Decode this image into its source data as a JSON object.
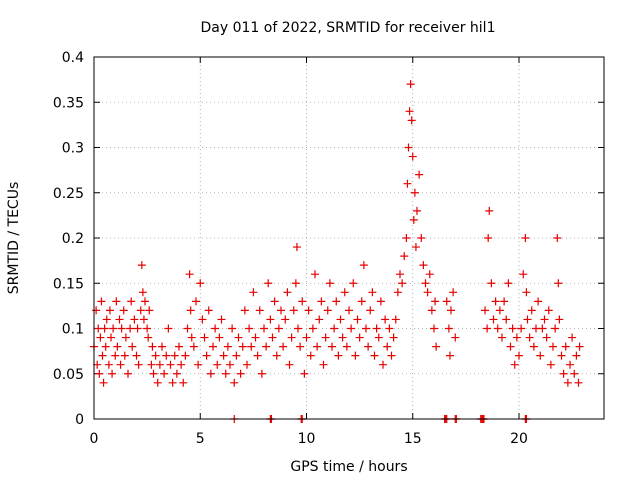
{
  "chart_data": {
    "type": "scatter",
    "title": "Day 011 of 2022, SRMTID for receiver hil1",
    "xlabel": "GPS time / hours",
    "ylabel": "SRMTID / TECUs",
    "xlim": [
      0,
      24
    ],
    "ylim": [
      0,
      0.4
    ],
    "xticks": [
      {
        "value": 0,
        "label": "0"
      },
      {
        "value": 5,
        "label": "5"
      },
      {
        "value": 10,
        "label": "10"
      },
      {
        "value": 15,
        "label": "15"
      },
      {
        "value": 20,
        "label": "20"
      }
    ],
    "yticks": [
      {
        "value": 0,
        "label": "0"
      },
      {
        "value": 0.05,
        "label": "0.05"
      },
      {
        "value": 0.1,
        "label": "0.1"
      },
      {
        "value": 0.15,
        "label": "0.15"
      },
      {
        "value": 0.2,
        "label": "0.2"
      },
      {
        "value": 0.25,
        "label": "0.25"
      },
      {
        "value": 0.3,
        "label": "0.3"
      },
      {
        "value": 0.35,
        "label": "0.35"
      },
      {
        "value": 0.4,
        "label": "0.4"
      }
    ],
    "grid": true,
    "marker": "+",
    "series": [
      {
        "color": "#e60000",
        "points": [
          [
            0.0,
            0.08
          ],
          [
            0.1,
            0.12
          ],
          [
            0.15,
            0.06
          ],
          [
            0.2,
            0.1
          ],
          [
            0.25,
            0.05
          ],
          [
            0.3,
            0.09
          ],
          [
            0.35,
            0.13
          ],
          [
            0.4,
            0.07
          ],
          [
            0.45,
            0.04
          ],
          [
            0.5,
            0.1
          ],
          [
            0.55,
            0.08
          ],
          [
            0.6,
            0.11
          ],
          [
            0.7,
            0.06
          ],
          [
            0.75,
            0.12
          ],
          [
            0.8,
            0.09
          ],
          [
            0.85,
            0.05
          ],
          [
            0.9,
            0.1
          ],
          [
            1.0,
            0.07
          ],
          [
            1.05,
            0.13
          ],
          [
            1.1,
            0.08
          ],
          [
            1.2,
            0.11
          ],
          [
            1.25,
            0.06
          ],
          [
            1.3,
            0.1
          ],
          [
            1.4,
            0.12
          ],
          [
            1.45,
            0.07
          ],
          [
            1.5,
            0.09
          ],
          [
            1.6,
            0.05
          ],
          [
            1.7,
            0.1
          ],
          [
            1.75,
            0.13
          ],
          [
            1.8,
            0.08
          ],
          [
            1.9,
            0.11
          ],
          [
            2.0,
            0.07
          ],
          [
            2.05,
            0.1
          ],
          [
            2.1,
            0.06
          ],
          [
            2.2,
            0.12
          ],
          [
            2.25,
            0.17
          ],
          [
            2.3,
            0.14
          ],
          [
            2.35,
            0.11
          ],
          [
            2.4,
            0.13
          ],
          [
            2.5,
            0.1
          ],
          [
            2.55,
            0.09
          ],
          [
            2.6,
            0.12
          ],
          [
            2.7,
            0.06
          ],
          [
            2.75,
            0.08
          ],
          [
            2.8,
            0.05
          ],
          [
            2.9,
            0.07
          ],
          [
            3.0,
            0.04
          ],
          [
            3.1,
            0.06
          ],
          [
            3.2,
            0.08
          ],
          [
            3.3,
            0.05
          ],
          [
            3.4,
            0.07
          ],
          [
            3.5,
            0.1
          ],
          [
            3.6,
            0.06
          ],
          [
            3.7,
            0.04
          ],
          [
            3.8,
            0.07
          ],
          [
            3.9,
            0.05
          ],
          [
            4.0,
            0.08
          ],
          [
            4.1,
            0.06
          ],
          [
            4.2,
            0.04
          ],
          [
            4.3,
            0.07
          ],
          [
            4.4,
            0.1
          ],
          [
            4.5,
            0.16
          ],
          [
            4.55,
            0.12
          ],
          [
            4.6,
            0.09
          ],
          [
            4.7,
            0.08
          ],
          [
            4.8,
            0.13
          ],
          [
            4.9,
            0.06
          ],
          [
            5.0,
            0.15
          ],
          [
            5.1,
            0.11
          ],
          [
            5.2,
            0.09
          ],
          [
            5.3,
            0.07
          ],
          [
            5.4,
            0.12
          ],
          [
            5.5,
            0.05
          ],
          [
            5.6,
            0.08
          ],
          [
            5.7,
            0.1
          ],
          [
            5.8,
            0.06
          ],
          [
            5.9,
            0.09
          ],
          [
            6.0,
            0.11
          ],
          [
            6.1,
            0.07
          ],
          [
            6.2,
            0.05
          ],
          [
            6.3,
            0.08
          ],
          [
            6.4,
            0.06
          ],
          [
            6.5,
            0.1
          ],
          [
            6.6,
            0.04
          ],
          [
            6.7,
            0.07
          ],
          [
            6.8,
            0.09
          ],
          [
            6.9,
            0.05
          ],
          [
            7.0,
            0.08
          ],
          [
            7.1,
            0.12
          ],
          [
            7.2,
            0.06
          ],
          [
            7.3,
            0.1
          ],
          [
            7.4,
            0.08
          ],
          [
            7.5,
            0.14
          ],
          [
            7.6,
            0.09
          ],
          [
            7.7,
            0.07
          ],
          [
            7.8,
            0.12
          ],
          [
            7.9,
            0.05
          ],
          [
            8.0,
            0.1
          ],
          [
            8.1,
            0.08
          ],
          [
            8.2,
            0.15
          ],
          [
            8.3,
            0.11
          ],
          [
            8.4,
            0.09
          ],
          [
            8.5,
            0.13
          ],
          [
            8.6,
            0.07
          ],
          [
            8.7,
            0.1
          ],
          [
            8.8,
            0.12
          ],
          [
            8.9,
            0.08
          ],
          [
            9.0,
            0.11
          ],
          [
            9.1,
            0.14
          ],
          [
            9.2,
            0.06
          ],
          [
            9.3,
            0.09
          ],
          [
            9.4,
            0.12
          ],
          [
            9.5,
            0.15
          ],
          [
            9.55,
            0.19
          ],
          [
            9.6,
            0.1
          ],
          [
            9.7,
            0.08
          ],
          [
            9.8,
            0.13
          ],
          [
            9.9,
            0.05
          ],
          [
            10.0,
            0.09
          ],
          [
            10.1,
            0.12
          ],
          [
            10.2,
            0.07
          ],
          [
            10.3,
            0.1
          ],
          [
            10.4,
            0.16
          ],
          [
            10.5,
            0.08
          ],
          [
            10.6,
            0.11
          ],
          [
            10.7,
            0.13
          ],
          [
            10.8,
            0.06
          ],
          [
            10.9,
            0.09
          ],
          [
            11.0,
            0.12
          ],
          [
            11.1,
            0.15
          ],
          [
            11.2,
            0.08
          ],
          [
            11.3,
            0.1
          ],
          [
            11.4,
            0.13
          ],
          [
            11.5,
            0.07
          ],
          [
            11.6,
            0.11
          ],
          [
            11.7,
            0.09
          ],
          [
            11.8,
            0.14
          ],
          [
            11.9,
            0.08
          ],
          [
            12.0,
            0.12
          ],
          [
            12.1,
            0.1
          ],
          [
            12.2,
            0.15
          ],
          [
            12.3,
            0.07
          ],
          [
            12.4,
            0.11
          ],
          [
            12.5,
            0.09
          ],
          [
            12.6,
            0.13
          ],
          [
            12.7,
            0.17
          ],
          [
            12.8,
            0.1
          ],
          [
            12.9,
            0.08
          ],
          [
            13.0,
            0.12
          ],
          [
            13.1,
            0.14
          ],
          [
            13.2,
            0.07
          ],
          [
            13.3,
            0.1
          ],
          [
            13.4,
            0.09
          ],
          [
            13.5,
            0.13
          ],
          [
            13.6,
            0.06
          ],
          [
            13.7,
            0.11
          ],
          [
            13.8,
            0.08
          ],
          [
            13.9,
            0.1
          ],
          [
            14.0,
            0.07
          ],
          [
            14.1,
            0.09
          ],
          [
            14.2,
            0.11
          ],
          [
            14.3,
            0.14
          ],
          [
            14.4,
            0.16
          ],
          [
            14.5,
            0.15
          ],
          [
            14.6,
            0.18
          ],
          [
            14.7,
            0.2
          ],
          [
            14.75,
            0.26
          ],
          [
            14.8,
            0.3
          ],
          [
            14.85,
            0.34
          ],
          [
            14.9,
            0.37
          ],
          [
            14.95,
            0.33
          ],
          [
            15.0,
            0.29
          ],
          [
            15.05,
            0.22
          ],
          [
            15.1,
            0.25
          ],
          [
            15.15,
            0.19
          ],
          [
            15.2,
            0.23
          ],
          [
            15.3,
            0.27
          ],
          [
            15.4,
            0.2
          ],
          [
            15.5,
            0.17
          ],
          [
            15.6,
            0.15
          ],
          [
            15.7,
            0.14
          ],
          [
            15.8,
            0.16
          ],
          [
            15.9,
            0.12
          ],
          [
            16.0,
            0.1
          ],
          [
            16.05,
            0.13
          ],
          [
            16.1,
            0.08
          ],
          [
            16.6,
            0.13
          ],
          [
            16.7,
            0.1
          ],
          [
            16.75,
            0.07
          ],
          [
            16.8,
            0.12
          ],
          [
            16.9,
            0.14
          ],
          [
            17.0,
            0.09
          ],
          [
            18.4,
            0.12
          ],
          [
            18.5,
            0.1
          ],
          [
            18.55,
            0.2
          ],
          [
            18.6,
            0.23
          ],
          [
            18.7,
            0.15
          ],
          [
            18.8,
            0.11
          ],
          [
            18.9,
            0.13
          ],
          [
            19.0,
            0.1
          ],
          [
            19.1,
            0.12
          ],
          [
            19.2,
            0.09
          ],
          [
            19.3,
            0.13
          ],
          [
            19.4,
            0.11
          ],
          [
            19.5,
            0.15
          ],
          [
            19.6,
            0.08
          ],
          [
            19.7,
            0.1
          ],
          [
            19.8,
            0.06
          ],
          [
            19.9,
            0.09
          ],
          [
            20.0,
            0.07
          ],
          [
            20.1,
            0.1
          ],
          [
            20.2,
            0.16
          ],
          [
            20.3,
            0.2
          ],
          [
            20.35,
            0.14
          ],
          [
            20.4,
            0.11
          ],
          [
            20.5,
            0.09
          ],
          [
            20.6,
            0.12
          ],
          [
            20.7,
            0.08
          ],
          [
            20.8,
            0.1
          ],
          [
            20.9,
            0.13
          ],
          [
            21.0,
            0.07
          ],
          [
            21.1,
            0.1
          ],
          [
            21.2,
            0.11
          ],
          [
            21.3,
            0.09
          ],
          [
            21.4,
            0.12
          ],
          [
            21.5,
            0.06
          ],
          [
            21.6,
            0.08
          ],
          [
            21.7,
            0.1
          ],
          [
            21.8,
            0.2
          ],
          [
            21.85,
            0.15
          ],
          [
            21.9,
            0.11
          ],
          [
            22.0,
            0.07
          ],
          [
            22.1,
            0.05
          ],
          [
            22.2,
            0.08
          ],
          [
            22.3,
            0.04
          ],
          [
            22.4,
            0.06
          ],
          [
            22.5,
            0.09
          ],
          [
            22.6,
            0.05
          ],
          [
            22.7,
            0.07
          ],
          [
            22.8,
            0.04
          ],
          [
            22.85,
            0.08
          ]
        ]
      },
      {
        "color": "#e60000",
        "points": [
          [
            6.6,
            0.0
          ],
          [
            8.3,
            0.0
          ],
          [
            8.35,
            0.0
          ],
          [
            9.75,
            0.0
          ],
          [
            9.8,
            0.0
          ],
          [
            16.5,
            0.0
          ],
          [
            16.55,
            0.0
          ],
          [
            16.6,
            0.0
          ],
          [
            17.0,
            0.0
          ],
          [
            17.05,
            0.0
          ],
          [
            18.2,
            0.0
          ],
          [
            18.25,
            0.0
          ],
          [
            18.3,
            0.0
          ],
          [
            18.35,
            0.0
          ],
          [
            20.3,
            0.0
          ],
          [
            20.35,
            0.0
          ]
        ]
      }
    ]
  }
}
